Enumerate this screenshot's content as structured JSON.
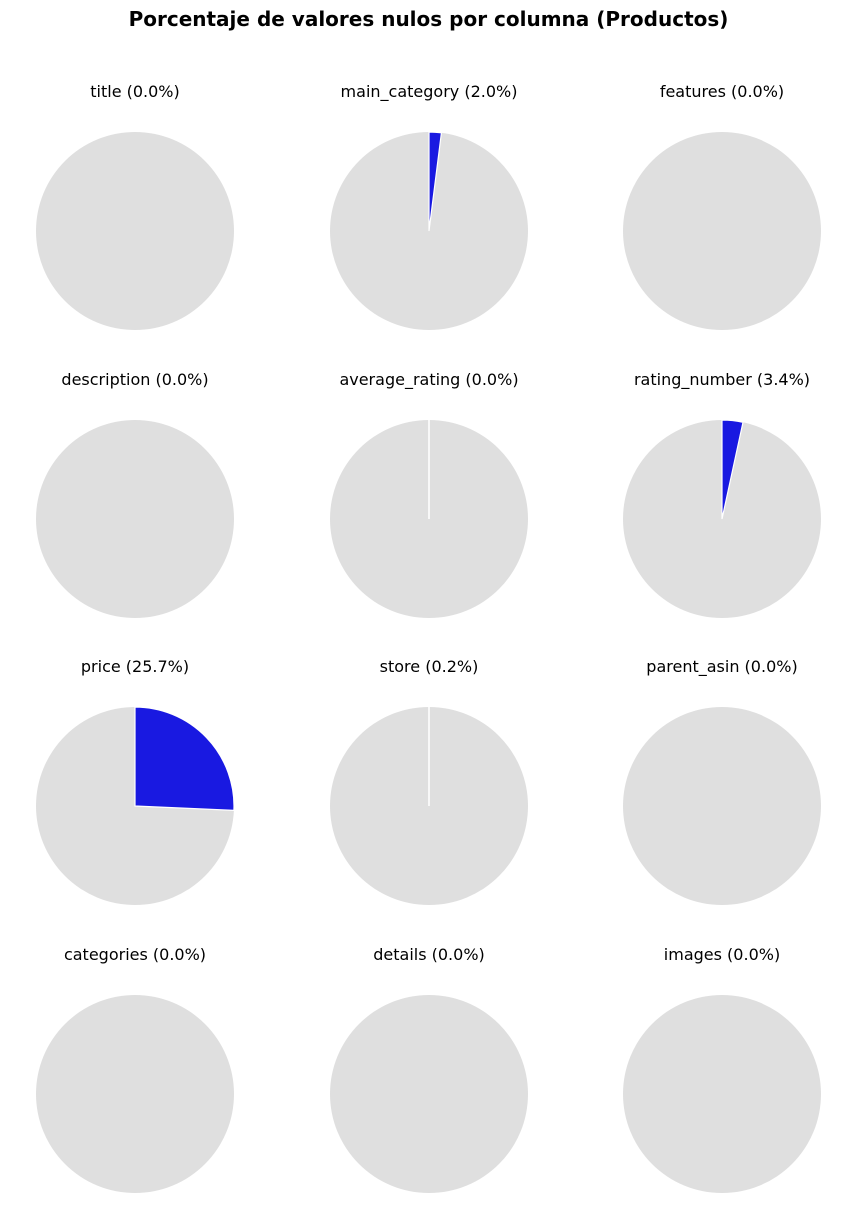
{
  "chart_data": {
    "type": "pie",
    "title": "Porcentaje de valores nulos por columna (Productos)",
    "colors": {
      "null": "#1919e1",
      "non_null": "#dfdfdf",
      "edge": "#ffffff"
    },
    "legend": "none",
    "start_angle": "top",
    "direction": "clockwise",
    "charts": [
      {
        "column": "title",
        "label": "title (0.0%)",
        "null_pct": 0.0
      },
      {
        "column": "main_category",
        "label": "main_category (2.0%)",
        "null_pct": 2.0
      },
      {
        "column": "features",
        "label": "features (0.0%)",
        "null_pct": 0.0
      },
      {
        "column": "description",
        "label": "description (0.0%)",
        "null_pct": 0.0
      },
      {
        "column": "average_rating",
        "label": "average_rating (0.0%)",
        "null_pct": 0.0
      },
      {
        "column": "rating_number",
        "label": "rating_number (3.4%)",
        "null_pct": 3.4
      },
      {
        "column": "price",
        "label": "price (25.7%)",
        "null_pct": 25.7
      },
      {
        "column": "store",
        "label": "store (0.2%)",
        "null_pct": 0.2
      },
      {
        "column": "parent_asin",
        "label": "parent_asin (0.0%)",
        "null_pct": 0.0
      },
      {
        "column": "categories",
        "label": "categories (0.0%)",
        "null_pct": 0.0
      },
      {
        "column": "details",
        "label": "details (0.0%)",
        "null_pct": 0.0
      },
      {
        "column": "images",
        "label": "images (0.0%)",
        "null_pct": 0.0
      }
    ]
  }
}
